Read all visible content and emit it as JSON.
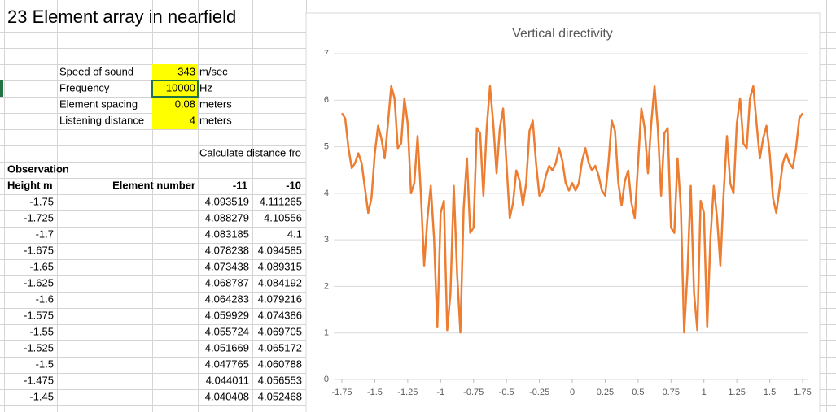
{
  "sheet": {
    "title": "23 Element array in nearfield",
    "params": [
      {
        "label": "Speed of sound",
        "value": "343",
        "unit": "m/sec"
      },
      {
        "label": "Frequency",
        "value": "10000",
        "unit": "Hz"
      },
      {
        "label": "Element spacing",
        "value": "0.08",
        "unit": "meters"
      },
      {
        "label": "Listening distance",
        "value": "4",
        "unit": "meters"
      }
    ],
    "note": "Calculate distance fro",
    "observation": "Observation",
    "header": [
      "Height m",
      "Element number",
      "-11",
      "-10"
    ],
    "rows": [
      [
        "-1.75",
        "4.093519",
        "4.111265"
      ],
      [
        "-1.725",
        "4.088279",
        "4.10556"
      ],
      [
        "-1.7",
        "4.083185",
        "4.1"
      ],
      [
        "-1.675",
        "4.078238",
        "4.094585"
      ],
      [
        "-1.65",
        "4.073438",
        "4.089315"
      ],
      [
        "-1.625",
        "4.068787",
        "4.084192"
      ],
      [
        "-1.6",
        "4.064283",
        "4.079216"
      ],
      [
        "-1.575",
        "4.059929",
        "4.074386"
      ],
      [
        "-1.55",
        "4.055724",
        "4.069705"
      ],
      [
        "-1.525",
        "4.051669",
        "4.065172"
      ],
      [
        "-1.5",
        "4.047765",
        "4.060788"
      ],
      [
        "-1.475",
        "4.044011",
        "4.056553"
      ],
      [
        "-1.45",
        "4.040408",
        "4.052468"
      ]
    ]
  },
  "chart_data": {
    "type": "line",
    "title": "Vertical directivity",
    "x": [
      -1.75,
      -1.725,
      -1.7,
      -1.675,
      -1.65,
      -1.625,
      -1.6,
      -1.575,
      -1.55,
      -1.525,
      -1.5,
      -1.475,
      -1.45,
      -1.425,
      -1.4,
      -1.375,
      -1.35,
      -1.325,
      -1.3,
      -1.275,
      -1.25,
      -1.225,
      -1.2,
      -1.175,
      -1.15,
      -1.125,
      -1.1,
      -1.075,
      -1.05,
      -1.025,
      -1,
      -0.975,
      -0.95,
      -0.925,
      -0.9,
      -0.875,
      -0.85,
      -0.825,
      -0.8,
      -0.775,
      -0.75,
      -0.725,
      -0.7,
      -0.675,
      -0.65,
      -0.625,
      -0.6,
      -0.575,
      -0.55,
      -0.525,
      -0.5,
      -0.475,
      -0.45,
      -0.425,
      -0.4,
      -0.375,
      -0.35,
      -0.325,
      -0.3,
      -0.275,
      -0.25,
      -0.225,
      -0.2,
      -0.175,
      -0.15,
      -0.125,
      -0.1,
      -0.075,
      -0.05,
      -0.025,
      0,
      0.025,
      0.05,
      0.075,
      0.1,
      0.125,
      0.15,
      0.175,
      0.2,
      0.225,
      0.25,
      0.275,
      0.3,
      0.325,
      0.35,
      0.375,
      0.4,
      0.425,
      0.45,
      0.475,
      0.5,
      0.525,
      0.55,
      0.575,
      0.6,
      0.625,
      0.65,
      0.675,
      0.7,
      0.725,
      0.75,
      0.775,
      0.8,
      0.825,
      0.85,
      0.875,
      0.9,
      0.925,
      0.95,
      0.975,
      1,
      1.025,
      1.05,
      1.075,
      1.1,
      1.125,
      1.15,
      1.175,
      1.2,
      1.225,
      1.25,
      1.275,
      1.3,
      1.325,
      1.35,
      1.375,
      1.4,
      1.425,
      1.45,
      1.475,
      1.5,
      1.525,
      1.55,
      1.575,
      1.6,
      1.625,
      1.65,
      1.675,
      1.7,
      1.725,
      1.75
    ],
    "series": [
      {
        "color": "#ed7d31",
        "values": [
          5.72,
          5.61,
          4.97,
          4.54,
          4.65,
          4.86,
          4.65,
          4.11,
          3.58,
          3.9,
          4.86,
          5.45,
          5.18,
          4.75,
          5.5,
          6.3,
          6.04,
          4.97,
          5.07,
          6.04,
          5.5,
          4.0,
          4.22,
          5.23,
          4.0,
          2.45,
          3.47,
          4.16,
          3.04,
          1.12,
          3.58,
          3.84,
          1.06,
          1.86,
          4.16,
          2.29,
          1.01,
          3.68,
          4.75,
          3.15,
          3.26,
          5.4,
          5.29,
          3.95,
          5.4,
          6.3,
          5.5,
          4.43,
          5.4,
          5.82,
          4.65,
          3.47,
          3.79,
          4.49,
          4.27,
          3.74,
          4.22,
          5.34,
          5.56,
          4.65,
          3.95,
          4.06,
          4.38,
          4.59,
          4.49,
          4.65,
          4.97,
          4.7,
          4.22,
          4.06,
          4.22,
          4.06,
          4.22,
          4.7,
          4.97,
          4.65,
          4.49,
          4.59,
          4.38,
          4.06,
          3.95,
          4.65,
          5.56,
          5.34,
          4.22,
          3.74,
          4.27,
          4.49,
          3.79,
          3.47,
          4.65,
          5.82,
          5.4,
          4.43,
          5.5,
          6.3,
          5.4,
          3.95,
          5.29,
          5.4,
          3.26,
          3.15,
          4.75,
          3.68,
          1.01,
          2.29,
          4.16,
          1.86,
          1.06,
          3.84,
          3.58,
          1.12,
          3.04,
          4.16,
          3.47,
          2.45,
          4.0,
          5.23,
          4.22,
          4.0,
          5.5,
          6.04,
          5.07,
          4.97,
          6.04,
          6.3,
          5.5,
          4.75,
          5.18,
          5.45,
          4.86,
          3.9,
          3.58,
          4.11,
          4.65,
          4.86,
          4.65,
          4.54,
          4.97,
          5.61,
          5.72
        ]
      }
    ],
    "xlim": [
      -1.75,
      1.75
    ],
    "xticks": [
      -1.75,
      -1.5,
      -1.25,
      -1,
      -0.75,
      -0.5,
      -0.25,
      0,
      0.25,
      0.5,
      0.75,
      1,
      1.25,
      1.5,
      1.75
    ],
    "ylim": [
      0,
      7
    ],
    "yticks": [
      0,
      1,
      2,
      3,
      4,
      5,
      6,
      7
    ],
    "grid": true
  }
}
